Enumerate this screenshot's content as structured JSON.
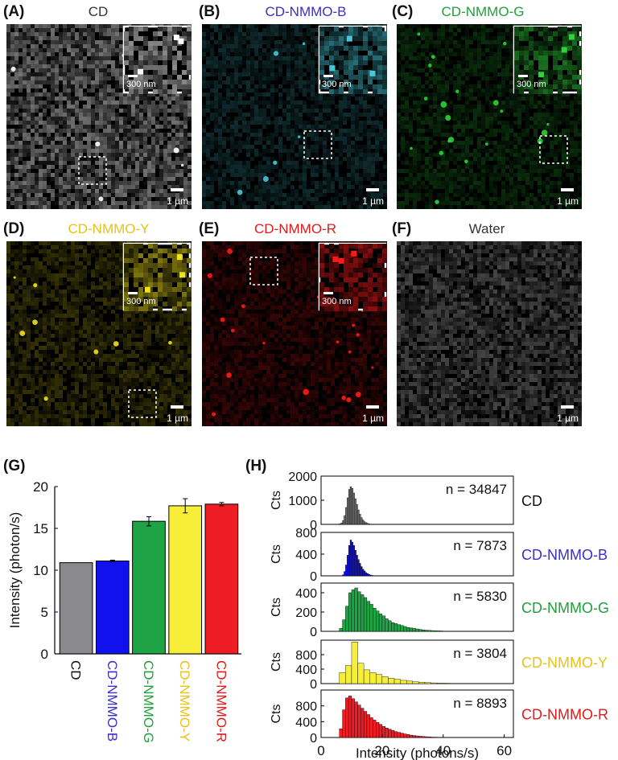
{
  "panels": [
    {
      "letter": "(A)",
      "title": "CD",
      "color": "#333333",
      "hue": "#ffffff",
      "spots": "low",
      "inset_scale": "300 nm",
      "scale": "1 µm"
    },
    {
      "letter": "(B)",
      "title": "CD-NMMO-B",
      "color": "#3a2fc8",
      "hue": "#47c8d8",
      "spots": "low",
      "inset_scale": "300 nm",
      "scale": "1 µm"
    },
    {
      "letter": "(C)",
      "title": "CD-NMMO-G",
      "color": "#1fa03a",
      "hue": "#2fd23a",
      "spots": "medium",
      "inset_scale": "300 nm",
      "scale": "1 µm"
    },
    {
      "letter": "(D)",
      "title": "CD-NMMO-Y",
      "color": "#e8c21a",
      "hue": "#f2e21a",
      "spots": "few",
      "inset_scale": "300 nm",
      "scale": "1 µm"
    },
    {
      "letter": "(E)",
      "title": "CD-NMMO-R",
      "color": "#e01b1b",
      "hue": "#ff1a1a",
      "spots": "many",
      "inset_scale": "300 nm",
      "scale": "1 µm"
    },
    {
      "letter": "(F)",
      "title": "Water",
      "color": "#333333",
      "hue": "#9a9a9a",
      "spots": "none",
      "inset_scale": "",
      "scale": "1 µm"
    }
  ],
  "chart_data": [
    {
      "panel": "(G)",
      "type": "bar",
      "ylabel": "Intensity (photon/s)",
      "ylim": [
        0,
        20
      ],
      "yticks": [
        0,
        5,
        10,
        15,
        20
      ],
      "categories": [
        "CD",
        "CD-NMMO-B",
        "CD-NMMO-G",
        "CD-NMMO-Y",
        "CD-NMMO-R"
      ],
      "values": [
        10.9,
        11.1,
        15.85,
        17.7,
        17.9
      ],
      "errors": [
        0,
        0.1,
        0.55,
        0.85,
        0.2
      ],
      "colors": [
        "#8a8a8e",
        "#1111ee",
        "#1ea345",
        "#f7ee3a",
        "#ee1c24"
      ],
      "label_colors": [
        "#111111",
        "#3a2fc8",
        "#1fa03a",
        "#e8c21a",
        "#e01b1b"
      ]
    },
    {
      "panel": "(H)",
      "type": "bar",
      "subtype": "histogram",
      "xlabel": "Intensity (photons/s)",
      "ylabel": "Cts",
      "xlim": [
        0,
        63
      ],
      "xticks": [
        0,
        20,
        40,
        60
      ],
      "bin_width": 2,
      "series": [
        {
          "name": "CD",
          "n_label": "n = 34847",
          "color": "#707070",
          "label_color": "#111111",
          "ylim": [
            0,
            2000
          ],
          "yticks": [
            0,
            1000,
            2000
          ],
          "bin_width": 0.5,
          "bin_start": 6,
          "counts": [
            20,
            60,
            160,
            360,
            700,
            1100,
            1450,
            1560,
            1490,
            1300,
            1060,
            820,
            600,
            420,
            280,
            180,
            110,
            70,
            40,
            20,
            10
          ]
        },
        {
          "name": "CD-NMMO-B",
          "n_label": "n = 7873",
          "color": "#1111ee",
          "label_color": "#3a2fc8",
          "ylim": [
            0,
            800
          ],
          "yticks": [
            0,
            400,
            800
          ],
          "bin_width": 0.5,
          "bin_start": 7,
          "counts": [
            20,
            80,
            200,
            380,
            560,
            660,
            620,
            560,
            470,
            380,
            300,
            230,
            170,
            120,
            90,
            60,
            40,
            25,
            15,
            8
          ]
        },
        {
          "name": "CD-NMMO-G",
          "n_label": "n = 5830",
          "color": "#1ea345",
          "label_color": "#1fa03a",
          "ylim": [
            0,
            500
          ],
          "yticks": [
            0,
            200,
            400
          ],
          "bin_width": 1,
          "bin_start": 6,
          "counts": [
            30,
            120,
            260,
            400,
            430,
            450,
            410,
            380,
            350,
            310,
            280,
            240,
            210,
            180,
            160,
            130,
            110,
            90,
            80,
            70,
            60,
            50,
            40,
            35,
            30,
            25,
            20,
            15,
            12,
            10,
            8,
            6,
            5,
            4
          ]
        },
        {
          "name": "CD-NMMO-Y",
          "n_label": "n = 3804",
          "color": "#f7ee3a",
          "label_color": "#e8c21a",
          "ylim": [
            0,
            1200
          ],
          "yticks": [
            0,
            400,
            800
          ],
          "bin_width": 2,
          "bin_start": 6,
          "counts": [
            300,
            500,
            1150,
            560,
            380,
            300,
            250,
            190,
            150,
            120,
            90,
            70,
            50,
            40,
            30,
            20,
            15,
            10,
            6
          ]
        },
        {
          "name": "CD-NMMO-R",
          "n_label": "n = 8893",
          "color": "#ee1c24",
          "label_color": "#e01b1b",
          "ylim": [
            0,
            1200
          ],
          "yticks": [
            0,
            400,
            800
          ],
          "bin_width": 1,
          "bin_start": 6,
          "counts": [
            220,
            700,
            1000,
            1050,
            980,
            900,
            820,
            740,
            660,
            580,
            500,
            440,
            380,
            330,
            280,
            240,
            210,
            180,
            150,
            130,
            110,
            90,
            75,
            60,
            50,
            40,
            32,
            25,
            20,
            15,
            10,
            8,
            6
          ]
        }
      ]
    }
  ]
}
